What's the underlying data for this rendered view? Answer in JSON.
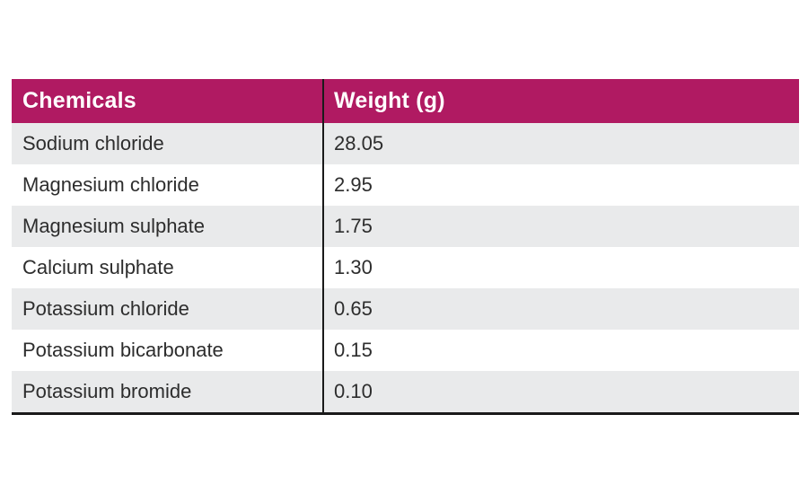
{
  "colors": {
    "header_bg": "#b01a62",
    "header_text": "#ffffff",
    "row_alt_bg": "#e9eaeb",
    "row_bg": "#ffffff",
    "rule": "#1a1a1a",
    "body_text": "#2d2d2d"
  },
  "table": {
    "columns": [
      {
        "label": "Chemicals"
      },
      {
        "label": "Weight (g)"
      }
    ],
    "rows": [
      {
        "chemical": "Sodium chloride",
        "weight": "28.05"
      },
      {
        "chemical": "Magnesium chloride",
        "weight": "2.95"
      },
      {
        "chemical": "Magnesium sulphate",
        "weight": "1.75"
      },
      {
        "chemical": "Calcium sulphate",
        "weight": "1.30"
      },
      {
        "chemical": "Potassium chloride",
        "weight": "0.65"
      },
      {
        "chemical": "Potassium bicarbonate",
        "weight": "0.15"
      },
      {
        "chemical": "Potassium bromide",
        "weight": "0.10"
      }
    ]
  }
}
